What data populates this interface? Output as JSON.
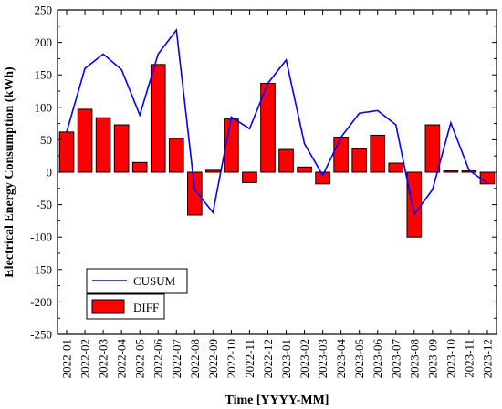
{
  "chart_data": {
    "type": "bar",
    "xlabel": "Time [YYYY-MM]",
    "ylabel": "Electrical Energy Consumption (kWh)",
    "ylim": [
      -250,
      250
    ],
    "yticks": [
      -250,
      -200,
      -150,
      -100,
      -50,
      0,
      50,
      100,
      150,
      200,
      250
    ],
    "categories": [
      "2022-01",
      "2022-02",
      "2022-03",
      "2022-04",
      "2022-05",
      "2022-06",
      "2022-07",
      "2022-08",
      "2022-09",
      "2022-10",
      "2022-11",
      "2022-12",
      "2023-01",
      "2023-02",
      "2023-03",
      "2023-04",
      "2023-05",
      "2023-06",
      "2023-07",
      "2023-08",
      "2023-09",
      "2023-10",
      "2023-11",
      "2023-12"
    ],
    "series": [
      {
        "name": "CUSUM",
        "type": "line",
        "color": "#0000ff",
        "values": [
          62,
          160,
          182,
          158,
          88,
          182,
          219,
          -27,
          -62,
          85,
          67,
          137,
          173,
          44,
          -5,
          54,
          91,
          95,
          73,
          -65,
          -27,
          76,
          3,
          -17
        ]
      },
      {
        "name": "DIFF",
        "type": "bar",
        "color": "#ff0000",
        "values": [
          62,
          97,
          84,
          73,
          15,
          166,
          52,
          -66,
          3,
          82,
          -16,
          137,
          35,
          8,
          -18,
          54,
          36,
          57,
          14,
          -100,
          73,
          2,
          2,
          -18
        ]
      }
    ],
    "legend": {
      "position": "bottom-left",
      "entries": [
        "CUSUM",
        "DIFF"
      ]
    },
    "grid": false
  }
}
